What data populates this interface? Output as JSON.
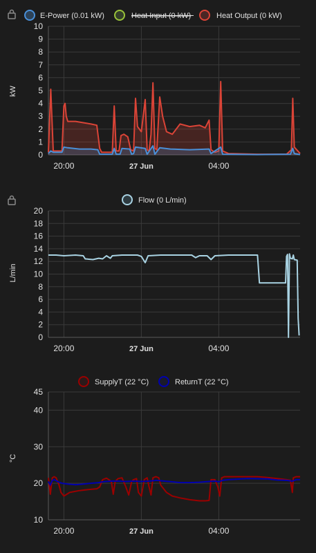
{
  "time_ticks": [
    "20:00",
    "27 Jun",
    "04:00"
  ],
  "colors": {
    "e_power": "#4a90d9",
    "heat_input": "#9ac33a",
    "heat_output": "#db4437",
    "flow": "#a9d3e3",
    "supply": "#9b0000",
    "return": "#0000b0"
  },
  "chart_data": [
    {
      "type": "line",
      "ylabel": "kW",
      "ylim": [
        0,
        10
      ],
      "yticks": [
        0,
        1,
        2,
        3,
        4,
        5,
        6,
        7,
        8,
        9,
        10
      ],
      "x_range_hours": [
        19.2,
        32.2
      ],
      "legend": [
        {
          "label": "E-Power (0.01 kW)",
          "hidden": false
        },
        {
          "label": "Heat Input (0 kW)",
          "hidden": true
        },
        {
          "label": "Heat Output (0 kW)",
          "hidden": false
        }
      ],
      "series": [
        {
          "name": "Heat Output (0 kW)",
          "color": "#db4437",
          "fill": true,
          "points": [
            [
              19.2,
              0.2
            ],
            [
              19.32,
              5.1
            ],
            [
              19.45,
              0.3
            ],
            [
              19.9,
              0.3
            ],
            [
              20.0,
              3.8
            ],
            [
              20.06,
              4.0
            ],
            [
              20.12,
              3.0
            ],
            [
              20.2,
              2.6
            ],
            [
              20.6,
              2.6
            ],
            [
              21.0,
              2.5
            ],
            [
              21.4,
              2.4
            ],
            [
              21.7,
              2.3
            ],
            [
              21.85,
              0.5
            ],
            [
              21.95,
              0.2
            ],
            [
              22.5,
              0.2
            ],
            [
              22.6,
              3.8
            ],
            [
              22.7,
              0.3
            ],
            [
              22.85,
              0.3
            ],
            [
              22.95,
              1.5
            ],
            [
              23.1,
              1.6
            ],
            [
              23.3,
              1.4
            ],
            [
              23.45,
              0.4
            ],
            [
              23.6,
              0.3
            ],
            [
              23.7,
              4.4
            ],
            [
              23.8,
              2.2
            ],
            [
              24.0,
              1.8
            ],
            [
              24.2,
              4.3
            ],
            [
              24.3,
              0.4
            ],
            [
              24.4,
              0.3
            ],
            [
              24.5,
              1.6
            ],
            [
              24.6,
              5.6
            ],
            [
              24.7,
              0.5
            ],
            [
              24.8,
              0.4
            ],
            [
              24.95,
              4.5
            ],
            [
              25.1,
              3.0
            ],
            [
              25.3,
              1.8
            ],
            [
              25.6,
              1.6
            ],
            [
              26.0,
              2.4
            ],
            [
              26.5,
              2.2
            ],
            [
              27.0,
              2.3
            ],
            [
              27.3,
              2.1
            ],
            [
              27.5,
              2.7
            ],
            [
              27.6,
              0.4
            ],
            [
              27.8,
              0.2
            ],
            [
              28.0,
              0.3
            ],
            [
              28.1,
              5.7
            ],
            [
              28.2,
              0.3
            ],
            [
              28.5,
              0.1
            ],
            [
              30.0,
              0.05
            ],
            [
              31.5,
              0.05
            ],
            [
              31.75,
              0.4
            ],
            [
              31.82,
              4.4
            ],
            [
              31.9,
              0.6
            ],
            [
              32.2,
              0.1
            ]
          ]
        },
        {
          "name": "E-Power (0.01 kW)",
          "color": "#4a90d9",
          "fill": true,
          "points": [
            [
              19.2,
              0.1
            ],
            [
              19.32,
              0.3
            ],
            [
              19.45,
              0.2
            ],
            [
              19.9,
              0.2
            ],
            [
              20.0,
              0.6
            ],
            [
              20.2,
              0.55
            ],
            [
              20.8,
              0.45
            ],
            [
              21.4,
              0.45
            ],
            [
              21.75,
              0.4
            ],
            [
              21.85,
              0.05
            ],
            [
              22.5,
              0.05
            ],
            [
              22.6,
              0.5
            ],
            [
              22.7,
              0.05
            ],
            [
              22.9,
              0.05
            ],
            [
              23.0,
              0.5
            ],
            [
              23.4,
              0.45
            ],
            [
              23.5,
              0.05
            ],
            [
              23.6,
              0.1
            ],
            [
              23.7,
              0.6
            ],
            [
              24.2,
              0.5
            ],
            [
              24.3,
              0.05
            ],
            [
              24.6,
              0.7
            ],
            [
              24.7,
              0.05
            ],
            [
              24.95,
              0.55
            ],
            [
              25.5,
              0.45
            ],
            [
              26.5,
              0.4
            ],
            [
              27.5,
              0.45
            ],
            [
              27.6,
              0.1
            ],
            [
              28.1,
              0.6
            ],
            [
              28.2,
              0.05
            ],
            [
              30.0,
              0.02
            ],
            [
              31.7,
              0.05
            ],
            [
              31.82,
              0.5
            ],
            [
              31.9,
              0.1
            ],
            [
              32.2,
              0.02
            ]
          ]
        }
      ]
    },
    {
      "type": "line",
      "ylabel": "L/min",
      "ylim": [
        0,
        20
      ],
      "yticks": [
        0,
        2,
        4,
        6,
        8,
        10,
        12,
        14,
        16,
        18,
        20
      ],
      "x_range_hours": [
        19.2,
        32.2
      ],
      "legend": [
        {
          "label": "Flow (0 L/min)",
          "hidden": false
        }
      ],
      "series": [
        {
          "name": "Flow (0 L/min)",
          "color": "#a9d3e3",
          "fill": false,
          "points": [
            [
              19.2,
              13.0
            ],
            [
              19.6,
              13.0
            ],
            [
              20.0,
              12.9
            ],
            [
              20.6,
              13.0
            ],
            [
              21.0,
              12.9
            ],
            [
              21.1,
              12.4
            ],
            [
              21.5,
              12.3
            ],
            [
              21.8,
              12.5
            ],
            [
              22.0,
              12.4
            ],
            [
              22.2,
              12.9
            ],
            [
              22.4,
              12.5
            ],
            [
              22.5,
              12.9
            ],
            [
              23.0,
              13.0
            ],
            [
              23.8,
              13.0
            ],
            [
              24.0,
              12.8
            ],
            [
              24.2,
              11.8
            ],
            [
              24.35,
              12.9
            ],
            [
              25.0,
              13.0
            ],
            [
              26.0,
              13.0
            ],
            [
              26.6,
              13.0
            ],
            [
              26.8,
              12.6
            ],
            [
              27.0,
              12.9
            ],
            [
              27.4,
              12.9
            ],
            [
              27.6,
              12.3
            ],
            [
              27.8,
              12.9
            ],
            [
              28.5,
              13.0
            ],
            [
              29.4,
              13.0
            ],
            [
              30.0,
              13.0
            ],
            [
              30.1,
              8.6
            ],
            [
              31.3,
              8.6
            ],
            [
              31.45,
              8.6
            ],
            [
              31.5,
              12.8
            ],
            [
              31.55,
              13.1
            ],
            [
              31.6,
              0.0
            ],
            [
              31.65,
              13.2
            ],
            [
              31.7,
              12.5
            ],
            [
              31.8,
              12.4
            ],
            [
              31.85,
              13.0
            ],
            [
              31.9,
              12.3
            ],
            [
              32.05,
              12.2
            ],
            [
              32.1,
              3.0
            ],
            [
              32.15,
              0.3
            ]
          ]
        }
      ]
    },
    {
      "type": "line",
      "ylabel": "°C",
      "ylim": [
        10,
        45
      ],
      "yticks": [
        10,
        20,
        30,
        40,
        45
      ],
      "x_range_hours": [
        19.2,
        32.2
      ],
      "legend": [
        {
          "label": "SupplyT (22 °C)",
          "hidden": false
        },
        {
          "label": "ReturnT (22 °C)",
          "hidden": false
        }
      ],
      "series": [
        {
          "name": "SupplyT (22 °C)",
          "color": "#9b0000",
          "fill": false,
          "points": [
            [
              19.2,
              21.5
            ],
            [
              19.3,
              17.0
            ],
            [
              19.4,
              21.5
            ],
            [
              19.5,
              21.8
            ],
            [
              19.6,
              21.5
            ],
            [
              19.75,
              19.5
            ],
            [
              19.85,
              17.5
            ],
            [
              20.0,
              16.5
            ],
            [
              20.3,
              17.5
            ],
            [
              20.8,
              18.0
            ],
            [
              21.3,
              18.3
            ],
            [
              21.7,
              18.5
            ],
            [
              21.85,
              19.0
            ],
            [
              22.0,
              21.0
            ],
            [
              22.2,
              21.4
            ],
            [
              22.45,
              20.5
            ],
            [
              22.55,
              17.0
            ],
            [
              22.65,
              20.5
            ],
            [
              22.8,
              21.3
            ],
            [
              23.0,
              21.5
            ],
            [
              23.2,
              19.0
            ],
            [
              23.35,
              16.8
            ],
            [
              23.5,
              20.5
            ],
            [
              23.6,
              21.0
            ],
            [
              23.75,
              21.3
            ],
            [
              23.85,
              17.5
            ],
            [
              24.0,
              16.5
            ],
            [
              24.15,
              21.0
            ],
            [
              24.3,
              21.5
            ],
            [
              24.4,
              19.0
            ],
            [
              24.5,
              16.8
            ],
            [
              24.6,
              21.5
            ],
            [
              24.75,
              21.8
            ],
            [
              24.9,
              21.5
            ],
            [
              25.0,
              19.5
            ],
            [
              25.3,
              17.5
            ],
            [
              25.6,
              16.5
            ],
            [
              26.0,
              16.0
            ],
            [
              26.5,
              15.5
            ],
            [
              27.0,
              15.2
            ],
            [
              27.3,
              15.2
            ],
            [
              27.5,
              15.3
            ],
            [
              27.6,
              21.0
            ],
            [
              27.8,
              21.0
            ],
            [
              27.95,
              19.0
            ],
            [
              28.05,
              16.5
            ],
            [
              28.15,
              21.5
            ],
            [
              28.3,
              21.8
            ],
            [
              29.0,
              21.8
            ],
            [
              30.0,
              21.8
            ],
            [
              30.5,
              21.6
            ],
            [
              31.0,
              21.3
            ],
            [
              31.5,
              21.0
            ],
            [
              31.7,
              20.8
            ],
            [
              31.8,
              17.5
            ],
            [
              31.85,
              21.5
            ],
            [
              32.0,
              21.8
            ],
            [
              32.2,
              21.8
            ]
          ]
        },
        {
          "name": "ReturnT (22 °C)",
          "color": "#0000b0",
          "fill": false,
          "points": [
            [
              19.2,
              20.5
            ],
            [
              19.3,
              19.5
            ],
            [
              19.4,
              20.8
            ],
            [
              19.5,
              21.0
            ],
            [
              19.7,
              20.4
            ],
            [
              19.9,
              20.0
            ],
            [
              20.2,
              19.8
            ],
            [
              20.6,
              19.6
            ],
            [
              21.0,
              19.8
            ],
            [
              21.4,
              20.0
            ],
            [
              21.8,
              20.2
            ],
            [
              22.0,
              20.4
            ],
            [
              22.4,
              20.6
            ],
            [
              22.8,
              20.6
            ],
            [
              23.2,
              20.5
            ],
            [
              23.6,
              20.6
            ],
            [
              24.0,
              20.5
            ],
            [
              24.4,
              20.6
            ],
            [
              24.8,
              20.8
            ],
            [
              25.2,
              20.6
            ],
            [
              25.6,
              20.4
            ],
            [
              26.0,
              20.2
            ],
            [
              26.5,
              20.2
            ],
            [
              27.0,
              20.3
            ],
            [
              27.5,
              20.5
            ],
            [
              27.8,
              20.6
            ],
            [
              28.0,
              20.4
            ],
            [
              28.2,
              20.8
            ],
            [
              28.5,
              21.0
            ],
            [
              29.5,
              21.3
            ],
            [
              30.5,
              21.2
            ],
            [
              31.0,
              20.9
            ],
            [
              31.5,
              20.8
            ],
            [
              31.8,
              20.6
            ],
            [
              32.0,
              21.0
            ],
            [
              32.2,
              21.0
            ]
          ]
        }
      ]
    }
  ]
}
